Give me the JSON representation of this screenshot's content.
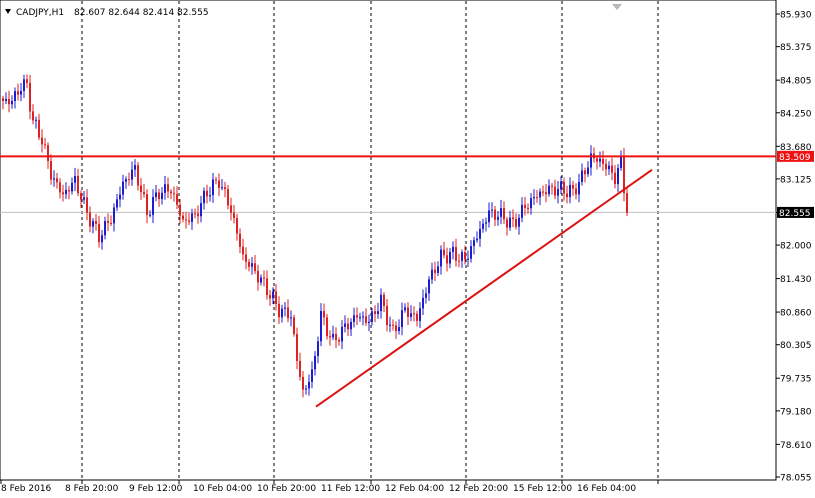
{
  "chart_header": {
    "symbol": "CADJPY,H1",
    "ohlc": "82.607 82.644 82.414 82.555"
  },
  "colors": {
    "bull_candle": "#1c1cd0",
    "bear_candle": "#dd2222",
    "resistance_line": "#ee1111",
    "trend_line": "#dd1111",
    "price_line": "#c0c0c0",
    "grid": "#000000"
  },
  "chart_data": {
    "type": "candlestick",
    "title": "",
    "grid": true,
    "ylim": [
      78.05,
      86.0
    ],
    "y_ticks": [
      "85.930",
      "85.375",
      "84.805",
      "84.250",
      "83.680",
      "83.125",
      "82.555",
      "82.000",
      "81.430",
      "80.860",
      "80.305",
      "79.735",
      "79.180",
      "78.610",
      "78.055"
    ],
    "x_ticks": [
      "8 Feb 2016",
      "8 Feb 20:00",
      "9 Feb 12:00",
      "10 Feb 04:00",
      "10 Feb 20:00",
      "11 Feb 12:00",
      "12 Feb 04:00",
      "12 Feb 20:00",
      "15 Feb 12:00",
      "16 Feb 04:00"
    ],
    "resistance": {
      "label": "83.509",
      "price": 83.509
    },
    "current_price": {
      "label": "82.555",
      "price": 82.555
    },
    "trendline": {
      "from_price": 79.25,
      "to_price": 83.28
    },
    "waypoints": [
      [
        0,
        84.45
      ],
      [
        3,
        84.45
      ],
      [
        6,
        84.7
      ],
      [
        8,
        84.72
      ],
      [
        10,
        84.1
      ],
      [
        13,
        83.8
      ],
      [
        16,
        83.2
      ],
      [
        20,
        82.85
      ],
      [
        24,
        83.1
      ],
      [
        28,
        82.55
      ],
      [
        32,
        82.15
      ],
      [
        36,
        82.45
      ],
      [
        40,
        83.05
      ],
      [
        44,
        83.3
      ],
      [
        48,
        82.55
      ],
      [
        52,
        82.9
      ],
      [
        56,
        82.95
      ],
      [
        60,
        82.4
      ],
      [
        64,
        82.5
      ],
      [
        68,
        82.9
      ],
      [
        72,
        83.1
      ],
      [
        76,
        82.6
      ],
      [
        80,
        81.8
      ],
      [
        84,
        81.55
      ],
      [
        88,
        81.25
      ],
      [
        92,
        80.9
      ],
      [
        96,
        80.8
      ],
      [
        98,
        80.05
      ],
      [
        100,
        79.5
      ],
      [
        103,
        79.8
      ],
      [
        106,
        80.8
      ],
      [
        110,
        80.35
      ],
      [
        114,
        80.6
      ],
      [
        118,
        80.8
      ],
      [
        122,
        80.7
      ],
      [
        126,
        81.05
      ],
      [
        130,
        80.5
      ],
      [
        134,
        80.9
      ],
      [
        138,
        80.75
      ],
      [
        142,
        81.4
      ],
      [
        146,
        81.8
      ],
      [
        150,
        81.85
      ],
      [
        154,
        81.75
      ],
      [
        158,
        82.15
      ],
      [
        162,
        82.55
      ],
      [
        166,
        82.5
      ],
      [
        170,
        82.35
      ],
      [
        174,
        82.65
      ],
      [
        178,
        82.85
      ],
      [
        182,
        82.95
      ],
      [
        186,
        82.95
      ],
      [
        190,
        82.9
      ],
      [
        194,
        83.25
      ],
      [
        196,
        83.5
      ],
      [
        200,
        83.4
      ],
      [
        204,
        83.15
      ],
      [
        206,
        83.4
      ],
      [
        208,
        82.55
      ]
    ]
  }
}
